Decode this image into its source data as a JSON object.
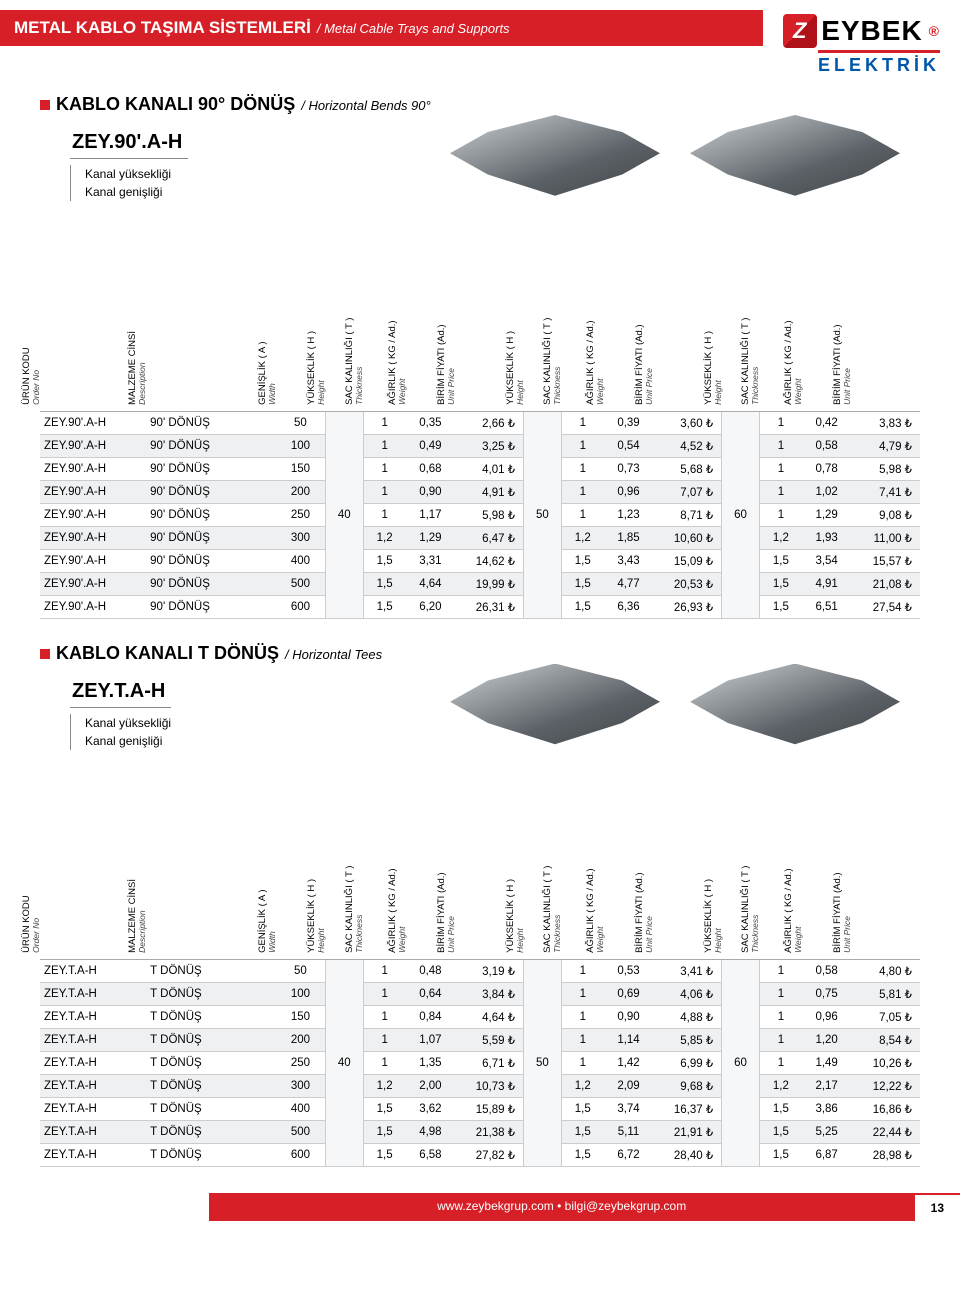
{
  "header": {
    "title_main": "METAL KABLO TAŞIMA SİSTEMLERİ",
    "title_sub": "/ Metal Cable Trays and Supports",
    "brand_name": "EYBEK",
    "brand_sub": "ELEKTRİK",
    "brand_z": "Z",
    "brand_r": "®"
  },
  "section1": {
    "title": "KABLO KANALI 90° DÖNÜŞ",
    "subtitle": "/ Horizontal Bends 90°",
    "code": "ZEY.90'.A-H",
    "code_note1": "Kanal yüksekliği",
    "code_note2": "Kanal genişliği"
  },
  "section2": {
    "title": "KABLO KANALI T DÖNÜŞ",
    "subtitle": "/ Horizontal Tees",
    "code": "ZEY.T.A-H",
    "code_note1": "Kanal yüksekliği",
    "code_note2": "Kanal genişliği"
  },
  "columns": {
    "c0": {
      "m": "ÜRÜN KODU",
      "s": "Order No"
    },
    "c1": {
      "m": "MALZEME CİNSİ",
      "s": "Description"
    },
    "c2": {
      "m": "GENİŞLİK ( A )",
      "s": "Width"
    },
    "c3": {
      "m": "YÜKSEKLİK ( H )",
      "s": "Height"
    },
    "c4": {
      "m": "SAC KALINLIĞI ( T )",
      "s": "Thickness"
    },
    "c5": {
      "m": "AĞIRLIK ( KG / Ad.)",
      "s": "Weight"
    },
    "c6": {
      "m": "BİRİM FİYATI (Ad.)",
      "s": "Unit Price"
    },
    "c7": {
      "m": "YÜKSEKLİK ( H )",
      "s": "Height"
    },
    "c8": {
      "m": "SAC KALINLIĞI ( T )",
      "s": "Thickness"
    },
    "c9": {
      "m": "AĞIRLIK ( KG / Ad.)",
      "s": "Weight"
    },
    "c10": {
      "m": "BİRİM FİYATI (Ad.)",
      "s": "Unit Price"
    },
    "c11": {
      "m": "YÜKSEKLİK ( H )",
      "s": "Height"
    },
    "c12": {
      "m": "SAC KALINLIĞI ( T )",
      "s": "Thickness"
    },
    "c13": {
      "m": "AĞIRLIK ( KG / Ad.)",
      "s": "Weight"
    },
    "c14": {
      "m": "BİRİM FİYATI (Ad.)",
      "s": "Unit Price"
    }
  },
  "t1": {
    "h1": "40",
    "h2": "50",
    "h3": "60",
    "rows": [
      {
        "code": "ZEY.90'.A-H",
        "desc": "90' DÖNÜŞ",
        "a": "50",
        "t1": "1",
        "w1": "0,35",
        "p1": "2,66 ₺",
        "t2": "1",
        "w2": "0,39",
        "p2": "3,60 ₺",
        "t3": "1",
        "w3": "0,42",
        "p3": "3,83 ₺"
      },
      {
        "code": "ZEY.90'.A-H",
        "desc": "90' DÖNÜŞ",
        "a": "100",
        "t1": "1",
        "w1": "0,49",
        "p1": "3,25 ₺",
        "t2": "1",
        "w2": "0,54",
        "p2": "4,52 ₺",
        "t3": "1",
        "w3": "0,58",
        "p3": "4,79 ₺"
      },
      {
        "code": "ZEY.90'.A-H",
        "desc": "90' DÖNÜŞ",
        "a": "150",
        "t1": "1",
        "w1": "0,68",
        "p1": "4,01 ₺",
        "t2": "1",
        "w2": "0,73",
        "p2": "5,68 ₺",
        "t3": "1",
        "w3": "0,78",
        "p3": "5,98 ₺"
      },
      {
        "code": "ZEY.90'.A-H",
        "desc": "90' DÖNÜŞ",
        "a": "200",
        "t1": "1",
        "w1": "0,90",
        "p1": "4,91 ₺",
        "t2": "1",
        "w2": "0,96",
        "p2": "7,07 ₺",
        "t3": "1",
        "w3": "1,02",
        "p3": "7,41 ₺"
      },
      {
        "code": "ZEY.90'.A-H",
        "desc": "90' DÖNÜŞ",
        "a": "250",
        "t1": "1",
        "w1": "1,17",
        "p1": "5,98 ₺",
        "t2": "1",
        "w2": "1,23",
        "p2": "8,71 ₺",
        "t3": "1",
        "w3": "1,29",
        "p3": "9,08 ₺"
      },
      {
        "code": "ZEY.90'.A-H",
        "desc": "90' DÖNÜŞ",
        "a": "300",
        "t1": "1,2",
        "w1": "1,29",
        "p1": "6,47 ₺",
        "t2": "1,2",
        "w2": "1,85",
        "p2": "10,60 ₺",
        "t3": "1,2",
        "w3": "1,93",
        "p3": "11,00 ₺"
      },
      {
        "code": "ZEY.90'.A-H",
        "desc": "90' DÖNÜŞ",
        "a": "400",
        "t1": "1,5",
        "w1": "3,31",
        "p1": "14,62 ₺",
        "t2": "1,5",
        "w2": "3,43",
        "p2": "15,09 ₺",
        "t3": "1,5",
        "w3": "3,54",
        "p3": "15,57 ₺"
      },
      {
        "code": "ZEY.90'.A-H",
        "desc": "90' DÖNÜŞ",
        "a": "500",
        "t1": "1,5",
        "w1": "4,64",
        "p1": "19,99 ₺",
        "t2": "1,5",
        "w2": "4,77",
        "p2": "20,53 ₺",
        "t3": "1,5",
        "w3": "4,91",
        "p3": "21,08 ₺"
      },
      {
        "code": "ZEY.90'.A-H",
        "desc": "90' DÖNÜŞ",
        "a": "600",
        "t1": "1,5",
        "w1": "6,20",
        "p1": "26,31 ₺",
        "t2": "1,5",
        "w2": "6,36",
        "p2": "26,93 ₺",
        "t3": "1,5",
        "w3": "6,51",
        "p3": "27,54 ₺"
      }
    ]
  },
  "t2": {
    "h1": "40",
    "h2": "50",
    "h3": "60",
    "rows": [
      {
        "code": "ZEY.T.A-H",
        "desc": "T DÖNÜŞ",
        "a": "50",
        "t1": "1",
        "w1": "0,48",
        "p1": "3,19 ₺",
        "t2": "1",
        "w2": "0,53",
        "p2": "3,41 ₺",
        "t3": "1",
        "w3": "0,58",
        "p3": "4,80 ₺"
      },
      {
        "code": "ZEY.T.A-H",
        "desc": "T DÖNÜŞ",
        "a": "100",
        "t1": "1",
        "w1": "0,64",
        "p1": "3,84 ₺",
        "t2": "1",
        "w2": "0,69",
        "p2": "4,06 ₺",
        "t3": "1",
        "w3": "0,75",
        "p3": "5,81 ₺"
      },
      {
        "code": "ZEY.T.A-H",
        "desc": "T DÖNÜŞ",
        "a": "150",
        "t1": "1",
        "w1": "0,84",
        "p1": "4,64 ₺",
        "t2": "1",
        "w2": "0,90",
        "p2": "4,88 ₺",
        "t3": "1",
        "w3": "0,96",
        "p3": "7,05 ₺"
      },
      {
        "code": "ZEY.T.A-H",
        "desc": "T DÖNÜŞ",
        "a": "200",
        "t1": "1",
        "w1": "1,07",
        "p1": "5,59 ₺",
        "t2": "1",
        "w2": "1,14",
        "p2": "5,85 ₺",
        "t3": "1",
        "w3": "1,20",
        "p3": "8,54 ₺"
      },
      {
        "code": "ZEY.T.A-H",
        "desc": "T DÖNÜŞ",
        "a": "250",
        "t1": "1",
        "w1": "1,35",
        "p1": "6,71 ₺",
        "t2": "1",
        "w2": "1,42",
        "p2": "6,99 ₺",
        "t3": "1",
        "w3": "1,49",
        "p3": "10,26 ₺"
      },
      {
        "code": "ZEY.T.A-H",
        "desc": "T DÖNÜŞ",
        "a": "300",
        "t1": "1,2",
        "w1": "2,00",
        "p1": "10,73 ₺",
        "t2": "1,2",
        "w2": "2,09",
        "p2": "9,68 ₺",
        "t3": "1,2",
        "w3": "2,17",
        "p3": "12,22 ₺"
      },
      {
        "code": "ZEY.T.A-H",
        "desc": "T DÖNÜŞ",
        "a": "400",
        "t1": "1,5",
        "w1": "3,62",
        "p1": "15,89 ₺",
        "t2": "1,5",
        "w2": "3,74",
        "p2": "16,37 ₺",
        "t3": "1,5",
        "w3": "3,86",
        "p3": "16,86 ₺"
      },
      {
        "code": "ZEY.T.A-H",
        "desc": "T DÖNÜŞ",
        "a": "500",
        "t1": "1,5",
        "w1": "4,98",
        "p1": "21,38 ₺",
        "t2": "1,5",
        "w2": "5,11",
        "p2": "21,91 ₺",
        "t3": "1,5",
        "w3": "5,25",
        "p3": "22,44 ₺"
      },
      {
        "code": "ZEY.T.A-H",
        "desc": "T DÖNÜŞ",
        "a": "600",
        "t1": "1,5",
        "w1": "6,58",
        "p1": "27,82 ₺",
        "t2": "1,5",
        "w2": "6,72",
        "p2": "28,40 ₺",
        "t3": "1,5",
        "w3": "6,87",
        "p3": "28,98 ₺"
      }
    ]
  },
  "footer": {
    "text": "www.zeybekgrup.com  •  bilgi@zeybekgrup.com",
    "page": "13"
  }
}
